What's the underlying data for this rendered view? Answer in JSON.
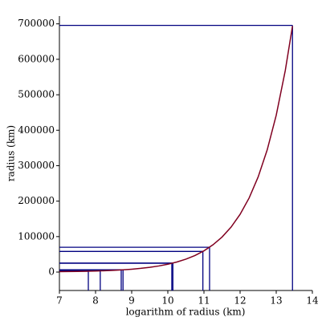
{
  "chart_data": {
    "type": "line",
    "xlabel": "logarithm of radius (km)",
    "ylabel": "radius (km)",
    "xlim": [
      7,
      14
    ],
    "ylim": [
      -52000,
      722000
    ],
    "xticks": [
      7,
      8,
      9,
      10,
      11,
      12,
      13,
      14
    ],
    "yticks": [
      0,
      100000,
      200000,
      300000,
      400000,
      500000,
      600000,
      700000
    ],
    "series": [
      {
        "color": "#800020",
        "x": [
          7,
          7.25,
          7.5,
          7.75,
          8,
          8.25,
          8.5,
          8.75,
          9,
          9.25,
          9.5,
          9.75,
          10,
          10.25,
          10.5,
          10.75,
          11,
          11.25,
          11.5,
          11.75,
          12,
          12.25,
          12.5,
          12.75,
          13,
          13.25,
          13.45
        ],
        "values": [
          1097,
          1408,
          1808,
          2322,
          2981,
          3827,
          4915,
          6311,
          8103,
          10405,
          13360,
          17154,
          22026,
          28283,
          36316,
          46630,
          59874,
          76880,
          98716,
          126753,
          162755,
          208981,
          268337,
          344551,
          442413,
          568070,
          693842
        ]
      }
    ],
    "drop_lines": {
      "color": "#000080",
      "x": [
        13.45,
        11.155,
        10.97,
        10.14,
        10.11,
        8.76,
        8.71,
        8.13,
        7.8
      ],
      "values": [
        695700,
        69911,
        58232,
        25362,
        24622,
        6371,
        6052,
        3390,
        2440
      ]
    }
  }
}
